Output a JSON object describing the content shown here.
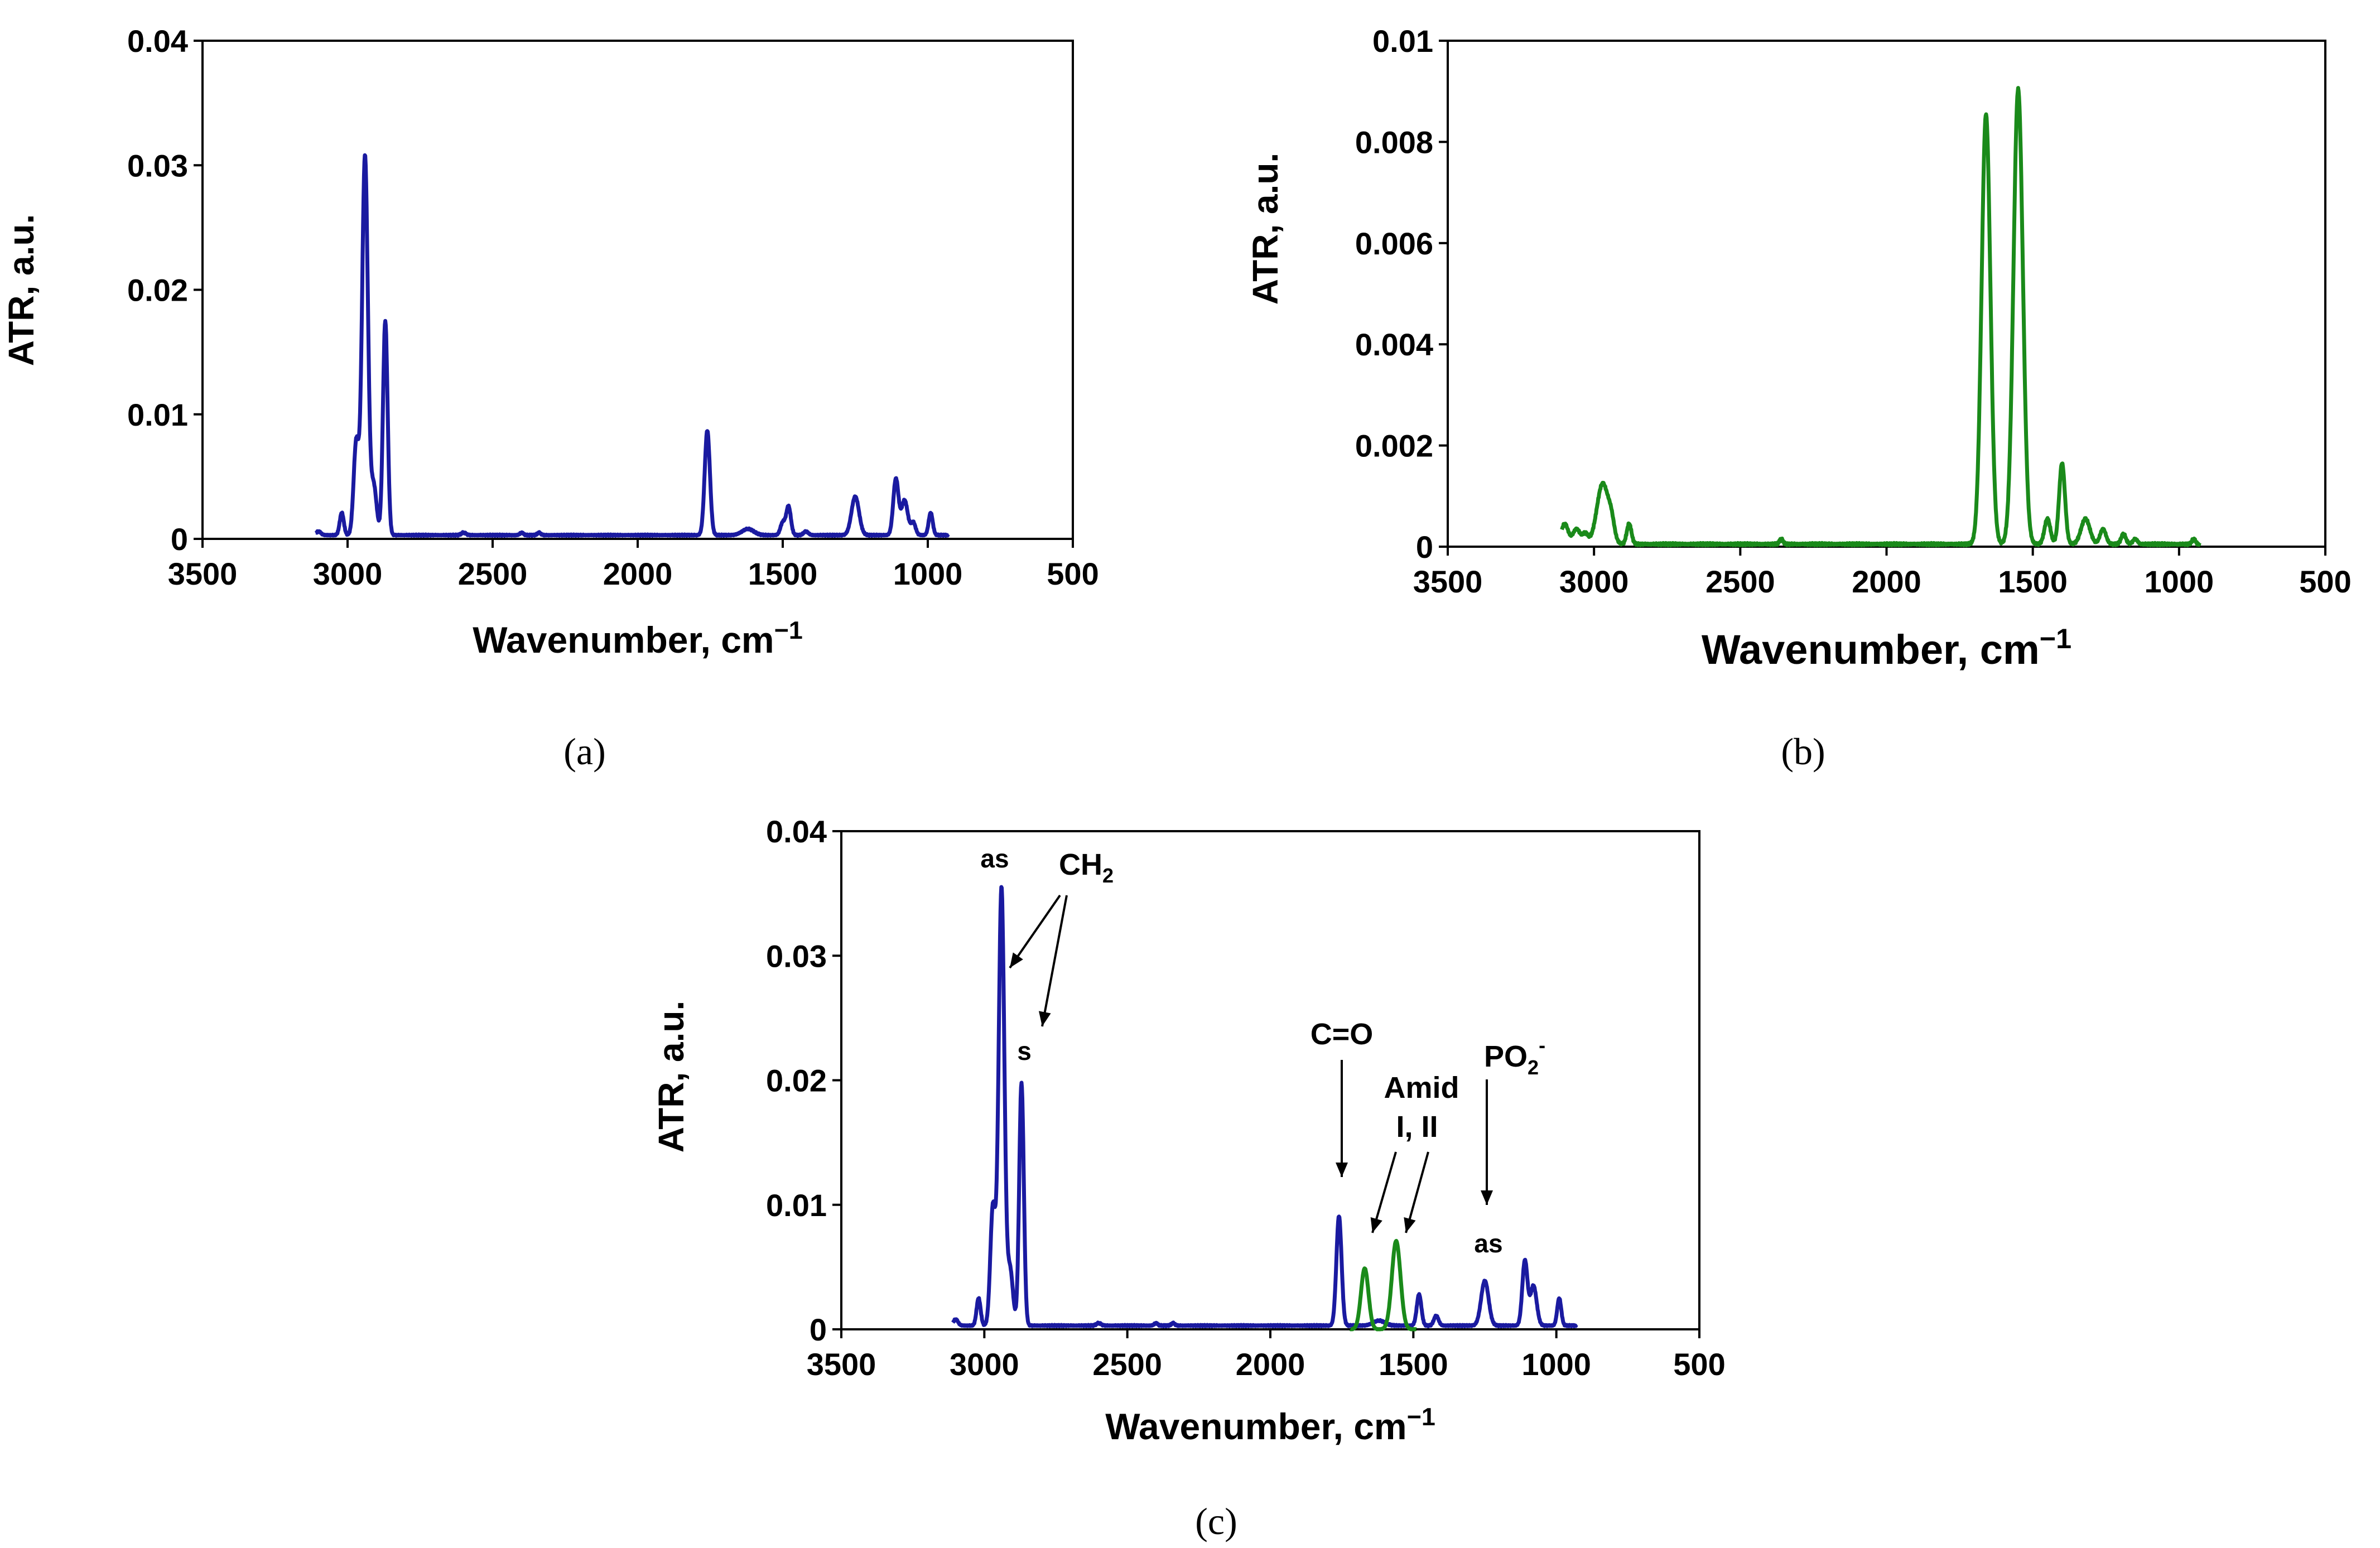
{
  "chart_data": [
    {
      "id": "a",
      "type": "line",
      "panel_label": "(a)",
      "title": "",
      "xlabel": "Wavenumber, cm",
      "xlabel_sup": "−1",
      "ylabel": "ATR, a.u.",
      "xlim": [
        3500,
        500
      ],
      "ylim": [
        0,
        0.04
      ],
      "x_ticks": [
        3500,
        3000,
        2500,
        2000,
        1500,
        1000,
        500
      ],
      "x_tick_labels": [
        "3500",
        "3000",
        "2500",
        "2000",
        "1500",
        "1000",
        "500"
      ],
      "y_ticks": [
        0,
        0.01,
        0.02,
        0.03,
        0.04
      ],
      "y_tick_labels": [
        "0",
        "0.01",
        "0.02",
        "0.03",
        "0.04"
      ],
      "series": [
        {
          "name": "spectrum",
          "color": "#1a1aa0",
          "x_range": [
            3110,
            930
          ],
          "baseline": 0.0003,
          "peaks": [
            [
              3100,
              0.0003,
              8
            ],
            [
              3020,
              0.0018,
              7
            ],
            [
              2970,
              0.0075,
              9
            ],
            [
              2940,
              0.0305,
              10
            ],
            [
              2910,
              0.004,
              10
            ],
            [
              2870,
              0.0172,
              8
            ],
            [
              2600,
              0.0002,
              8
            ],
            [
              2400,
              0.0002,
              6
            ],
            [
              2340,
              0.0002,
              6
            ],
            [
              1760,
              0.0084,
              9
            ],
            [
              1620,
              0.0005,
              20
            ],
            [
              1500,
              0.001,
              8
            ],
            [
              1480,
              0.0023,
              8
            ],
            [
              1420,
              0.0003,
              8
            ],
            [
              1250,
              0.0031,
              13
            ],
            [
              1110,
              0.0045,
              9
            ],
            [
              1080,
              0.0028,
              11
            ],
            [
              1050,
              0.001,
              8
            ],
            [
              990,
              0.0018,
              7
            ]
          ]
        }
      ]
    },
    {
      "id": "b",
      "type": "line",
      "panel_label": "(b)",
      "title": "",
      "xlabel": "Wavenumber, cm",
      "xlabel_sup": "−1",
      "ylabel": "ATR, a.u.",
      "xlim": [
        3500,
        500
      ],
      "ylim": [
        0,
        0.01
      ],
      "x_ticks": [
        3500,
        3000,
        2500,
        2000,
        1500,
        1000,
        500
      ],
      "x_tick_labels": [
        "3500",
        "3000",
        "2500",
        "2000",
        "1500",
        "1000",
        "500"
      ],
      "y_ticks": [
        0,
        0.002,
        0.004,
        0.006,
        0.008,
        0.01
      ],
      "y_tick_labels": [
        "0",
        "0.002",
        "0.004",
        "0.006",
        "0.008",
        "0.01"
      ],
      "series": [
        {
          "name": "spectrum",
          "color": "#1a8a1a",
          "x_range": [
            3110,
            930
          ],
          "baseline": 5e-05,
          "peaks": [
            [
              3100,
              0.0004,
              12
            ],
            [
              3060,
              0.0003,
              12
            ],
            [
              3030,
              0.0002,
              10
            ],
            [
              2970,
              0.0012,
              20
            ],
            [
              2940,
              0.0003,
              10
            ],
            [
              2880,
              0.0004,
              8
            ],
            [
              2360,
              0.0001,
              6
            ],
            [
              1660,
              0.0085,
              15
            ],
            [
              1550,
              0.009,
              16
            ],
            [
              1450,
              0.0005,
              10
            ],
            [
              1400,
              0.0016,
              10
            ],
            [
              1320,
              0.0005,
              15
            ],
            [
              1260,
              0.0003,
              10
            ],
            [
              1190,
              0.0002,
              8
            ],
            [
              1150,
              0.0001,
              8
            ],
            [
              950,
              0.0001,
              6
            ]
          ]
        }
      ]
    },
    {
      "id": "c",
      "type": "line",
      "panel_label": "(c)",
      "title": "",
      "xlabel": "Wavenumber, cm",
      "xlabel_sup": "−1",
      "ylabel": "ATR, a.u.",
      "xlim": [
        3500,
        500
      ],
      "ylim": [
        0,
        0.04
      ],
      "x_ticks": [
        3500,
        3000,
        2500,
        2000,
        1500,
        1000,
        500
      ],
      "x_tick_labels": [
        "3500",
        "3000",
        "2500",
        "2000",
        "1500",
        "1000",
        "500"
      ],
      "y_ticks": [
        0,
        0.01,
        0.02,
        0.03,
        0.04
      ],
      "y_tick_labels": [
        "0",
        "0.01",
        "0.02",
        "0.03",
        "0.04"
      ],
      "series": [
        {
          "name": "blue spectrum",
          "color": "#1a1aa0",
          "x_range": [
            3110,
            930
          ],
          "baseline": 0.0003,
          "peaks": [
            [
              3100,
              0.0005,
              8
            ],
            [
              3020,
              0.0022,
              7
            ],
            [
              2970,
              0.0095,
              9
            ],
            [
              2940,
              0.0352,
              10
            ],
            [
              2910,
              0.0045,
              10
            ],
            [
              2870,
              0.0195,
              8
            ],
            [
              2600,
              0.0002,
              8
            ],
            [
              2400,
              0.0002,
              6
            ],
            [
              2340,
              0.0002,
              6
            ],
            [
              1760,
              0.0088,
              9
            ],
            [
              1620,
              0.0004,
              20
            ],
            [
              1480,
              0.0025,
              8
            ],
            [
              1420,
              0.0008,
              8
            ],
            [
              1250,
              0.0036,
              13
            ],
            [
              1110,
              0.0052,
              9
            ],
            [
              1080,
              0.0032,
              11
            ],
            [
              990,
              0.0022,
              7
            ]
          ]
        },
        {
          "name": "green spectrum",
          "color": "#1a8a1a",
          "x_range": [
            1720,
            1490
          ],
          "baseline": 0.0,
          "peaks": [
            [
              1670,
              0.0049,
              13
            ],
            [
              1560,
              0.0071,
              15
            ]
          ]
        }
      ],
      "annotations": {
        "as_top": "as",
        "ch2": "CH",
        "ch2_sub": "2",
        "s": "s",
        "co": "C=O",
        "amid1": "Amid",
        "amid2": "I, II",
        "po2": "PO",
        "po2_sub": "2",
        "po2_sup": "-",
        "as_low": "as"
      }
    }
  ]
}
